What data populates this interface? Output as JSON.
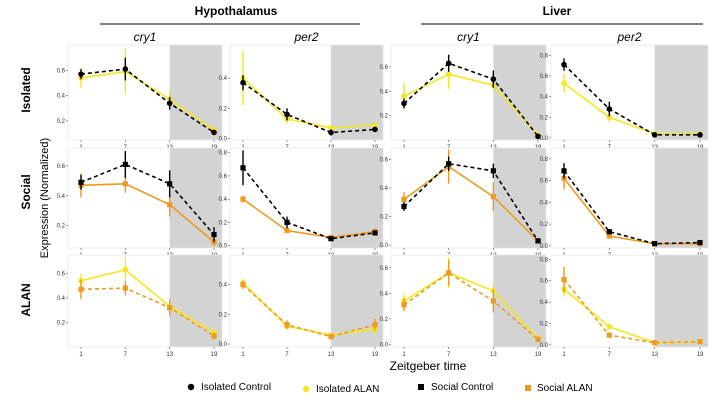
{
  "figure": {
    "group_titles": [
      "Hypothalamus",
      "Liver"
    ],
    "row_labels": [
      "Isolated",
      "Social",
      "ALAN"
    ],
    "y_axis_label": "Expression (Normalized)",
    "x_axis_label": "Zeitgeber time",
    "column_titles": [
      "cry1",
      "per2",
      "cry1",
      "per2"
    ],
    "x_ticks": [
      1,
      7,
      13,
      19
    ],
    "dark_phase_start": 13,
    "colors": {
      "isolated_control": "#000000",
      "isolated_alan": "#f5e61e",
      "social_control": "#000000",
      "social_alan": "#ee9a1e",
      "shade": "#d3d3d3",
      "panel_border": "#e6e6e6"
    }
  },
  "legend": [
    {
      "label": "Isolated Control",
      "marker": "circle",
      "color": "#000000"
    },
    {
      "label": "Isolated ALAN",
      "marker": "circle",
      "color": "#f5e61e"
    },
    {
      "label": "Social Control",
      "marker": "square",
      "color": "#000000"
    },
    {
      "label": "Social ALAN",
      "marker": "square",
      "color": "#ee9a1e"
    }
  ],
  "chart_data": [
    {
      "type": "line",
      "row": "Isolated",
      "group": "Hypothalamus",
      "title": "cry1",
      "x": [
        1,
        7,
        13,
        19
      ],
      "ylim": [
        0.05,
        0.8
      ],
      "yticks": [
        0.2,
        0.4,
        0.6
      ],
      "series": [
        {
          "name": "Isolated Control",
          "values": [
            0.57,
            0.61,
            0.34,
            0.11
          ],
          "err": [
            0.04,
            0.09,
            0.05,
            0.02
          ],
          "color": "#000000",
          "dash": true,
          "marker": "circle"
        },
        {
          "name": "Isolated ALAN",
          "values": [
            0.54,
            0.59,
            0.37,
            0.13
          ],
          "err": [
            0.08,
            0.18,
            0.07,
            0.03
          ],
          "color": "#f5e61e",
          "dash": false,
          "marker": "circle"
        }
      ]
    },
    {
      "type": "line",
      "row": "Isolated",
      "group": "Hypothalamus",
      "title": "per2",
      "x": [
        1,
        7,
        13,
        19
      ],
      "ylim": [
        -0.01,
        0.62
      ],
      "yticks": [
        0.0,
        0.2,
        0.4
      ],
      "series": [
        {
          "name": "Isolated Control",
          "values": [
            0.37,
            0.16,
            0.04,
            0.06
          ],
          "err": [
            0.05,
            0.04,
            0.02,
            0.01
          ],
          "color": "#000000",
          "dash": true,
          "marker": "circle"
        },
        {
          "name": "Isolated ALAN",
          "values": [
            0.4,
            0.13,
            0.07,
            0.09
          ],
          "err": [
            0.18,
            0.03,
            0.02,
            0.02
          ],
          "color": "#f5e61e",
          "dash": false,
          "marker": "circle"
        }
      ]
    },
    {
      "type": "line",
      "row": "Isolated",
      "group": "Liver",
      "title": "cry1",
      "x": [
        1,
        7,
        13,
        19
      ],
      "ylim": [
        0.0,
        0.78
      ],
      "yticks": [
        0.2,
        0.4,
        0.6
      ],
      "series": [
        {
          "name": "Isolated Control",
          "values": [
            0.3,
            0.63,
            0.5,
            0.03
          ],
          "err": [
            0.04,
            0.07,
            0.07,
            0.01
          ],
          "color": "#000000",
          "dash": true,
          "marker": "circle"
        },
        {
          "name": "Isolated ALAN",
          "values": [
            0.36,
            0.54,
            0.45,
            0.04
          ],
          "err": [
            0.11,
            0.12,
            0.05,
            0.01
          ],
          "color": "#f5e61e",
          "dash": false,
          "marker": "circle"
        }
      ]
    },
    {
      "type": "line",
      "row": "Isolated",
      "group": "Liver",
      "title": "per2",
      "x": [
        1,
        7,
        13,
        19
      ],
      "ylim": [
        -0.02,
        0.9
      ],
      "yticks": [
        0.0,
        0.2,
        0.4,
        0.6,
        0.8
      ],
      "series": [
        {
          "name": "Isolated Control",
          "values": [
            0.71,
            0.28,
            0.03,
            0.03
          ],
          "err": [
            0.06,
            0.07,
            0.01,
            0.01
          ],
          "color": "#000000",
          "dash": true,
          "marker": "circle"
        },
        {
          "name": "Isolated ALAN",
          "values": [
            0.53,
            0.2,
            0.04,
            0.04
          ],
          "err": [
            0.09,
            0.04,
            0.01,
            0.01
          ],
          "color": "#f5e61e",
          "dash": false,
          "marker": "circle"
        }
      ]
    },
    {
      "type": "line",
      "row": "Social",
      "group": "Hypothalamus",
      "title": "cry1",
      "x": [
        1,
        7,
        13,
        19
      ],
      "ylim": [
        0.05,
        0.72
      ],
      "yticks": [
        0.2,
        0.4,
        0.6
      ],
      "series": [
        {
          "name": "Social Control",
          "values": [
            0.49,
            0.61,
            0.48,
            0.14
          ],
          "err": [
            0.05,
            0.09,
            0.09,
            0.05
          ],
          "color": "#000000",
          "dash": true,
          "marker": "square"
        },
        {
          "name": "Social ALAN",
          "values": [
            0.47,
            0.48,
            0.34,
            0.09
          ],
          "err": [
            0.08,
            0.06,
            0.08,
            0.03
          ],
          "color": "#ee9a1e",
          "dash": false,
          "marker": "square"
        }
      ]
    },
    {
      "type": "line",
      "row": "Social",
      "group": "Hypothalamus",
      "title": "per2",
      "x": [
        1,
        7,
        13,
        19
      ],
      "ylim": [
        -0.02,
        0.84
      ],
      "yticks": [
        0.0,
        0.2,
        0.4,
        0.6,
        0.8
      ],
      "series": [
        {
          "name": "Social Control",
          "values": [
            0.67,
            0.2,
            0.06,
            0.11
          ],
          "err": [
            0.15,
            0.05,
            0.02,
            0.02
          ],
          "color": "#000000",
          "dash": true,
          "marker": "square"
        },
        {
          "name": "Social ALAN",
          "values": [
            0.4,
            0.13,
            0.07,
            0.12
          ],
          "err": [
            0.03,
            0.02,
            0.02,
            0.03
          ],
          "color": "#ee9a1e",
          "dash": false,
          "marker": "square"
        }
      ]
    },
    {
      "type": "line",
      "row": "Social",
      "group": "Liver",
      "title": "cry1",
      "x": [
        1,
        7,
        13,
        19
      ],
      "ylim": [
        -0.02,
        0.68
      ],
      "yticks": [
        0.0,
        0.2,
        0.4,
        0.6
      ],
      "series": [
        {
          "name": "Social Control",
          "values": [
            0.27,
            0.57,
            0.52,
            0.03
          ],
          "err": [
            0.03,
            0.05,
            0.05,
            0.01
          ],
          "color": "#000000",
          "dash": true,
          "marker": "square"
        },
        {
          "name": "Social ALAN",
          "values": [
            0.32,
            0.55,
            0.34,
            0.03
          ],
          "err": [
            0.05,
            0.12,
            0.1,
            0.01
          ],
          "color": "#ee9a1e",
          "dash": false,
          "marker": "square"
        }
      ]
    },
    {
      "type": "line",
      "row": "Social",
      "group": "Liver",
      "title": "per2",
      "x": [
        1,
        7,
        13,
        19
      ],
      "ylim": [
        -0.02,
        0.9
      ],
      "yticks": [
        0.0,
        0.2,
        0.4,
        0.6,
        0.8
      ],
      "series": [
        {
          "name": "Social Control",
          "values": [
            0.69,
            0.13,
            0.02,
            0.03
          ],
          "err": [
            0.07,
            0.02,
            0.01,
            0.01
          ],
          "color": "#000000",
          "dash": true,
          "marker": "square"
        },
        {
          "name": "Social ALAN",
          "values": [
            0.62,
            0.09,
            0.02,
            0.02
          ],
          "err": [
            0.1,
            0.02,
            0.01,
            0.01
          ],
          "color": "#ee9a1e",
          "dash": false,
          "marker": "square"
        }
      ]
    },
    {
      "type": "line",
      "row": "ALAN",
      "group": "Hypothalamus",
      "title": "cry1",
      "x": [
        1,
        7,
        13,
        19
      ],
      "ylim": [
        0.0,
        0.75
      ],
      "yticks": [
        0.2,
        0.4,
        0.6
      ],
      "series": [
        {
          "name": "Isolated ALAN",
          "values": [
            0.54,
            0.63,
            0.33,
            0.12
          ],
          "err": [
            0.06,
            0.1,
            0.04,
            0.02
          ],
          "color": "#f5e61e",
          "dash": false,
          "marker": "circle"
        },
        {
          "name": "Social ALAN",
          "values": [
            0.47,
            0.48,
            0.32,
            0.09
          ],
          "err": [
            0.08,
            0.06,
            0.07,
            0.03
          ],
          "color": "#ee9a1e",
          "dash": true,
          "marker": "square"
        }
      ]
    },
    {
      "type": "line",
      "row": "ALAN",
      "group": "Hypothalamus",
      "title": "per2",
      "x": [
        1,
        7,
        13,
        19
      ],
      "ylim": [
        -0.02,
        0.6
      ],
      "yticks": [
        0.0,
        0.2,
        0.4
      ],
      "series": [
        {
          "name": "Isolated ALAN",
          "values": [
            0.41,
            0.12,
            0.06,
            0.1
          ],
          "err": [
            0.03,
            0.02,
            0.01,
            0.03
          ],
          "color": "#f5e61e",
          "dash": false,
          "marker": "circle"
        },
        {
          "name": "Social ALAN",
          "values": [
            0.4,
            0.13,
            0.05,
            0.13
          ],
          "err": [
            0.03,
            0.03,
            0.02,
            0.04
          ],
          "color": "#ee9a1e",
          "dash": true,
          "marker": "square"
        }
      ]
    },
    {
      "type": "line",
      "row": "ALAN",
      "group": "Liver",
      "title": "cry1",
      "x": [
        1,
        7,
        13,
        19
      ],
      "ylim": [
        -0.02,
        0.7
      ],
      "yticks": [
        0.0,
        0.2,
        0.4,
        0.6
      ],
      "series": [
        {
          "name": "Isolated ALAN",
          "values": [
            0.34,
            0.56,
            0.42,
            0.05
          ],
          "err": [
            0.06,
            0.12,
            0.05,
            0.01
          ],
          "color": "#f5e61e",
          "dash": false,
          "marker": "circle"
        },
        {
          "name": "Social ALAN",
          "values": [
            0.31,
            0.56,
            0.34,
            0.04
          ],
          "err": [
            0.05,
            0.1,
            0.09,
            0.01
          ],
          "color": "#ee9a1e",
          "dash": true,
          "marker": "square"
        }
      ]
    },
    {
      "type": "line",
      "row": "ALAN",
      "group": "Liver",
      "title": "per2",
      "x": [
        1,
        7,
        13,
        19
      ],
      "ylim": [
        -0.02,
        0.84
      ],
      "yticks": [
        0.0,
        0.2,
        0.4,
        0.6,
        0.8
      ],
      "series": [
        {
          "name": "Isolated ALAN",
          "values": [
            0.52,
            0.17,
            0.02,
            0.03
          ],
          "err": [
            0.07,
            0.03,
            0.01,
            0.01
          ],
          "color": "#f5e61e",
          "dash": false,
          "marker": "circle"
        },
        {
          "name": "Social ALAN",
          "values": [
            0.61,
            0.09,
            0.02,
            0.03
          ],
          "err": [
            0.12,
            0.02,
            0.01,
            0.01
          ],
          "color": "#ee9a1e",
          "dash": true,
          "marker": "square"
        }
      ]
    }
  ]
}
